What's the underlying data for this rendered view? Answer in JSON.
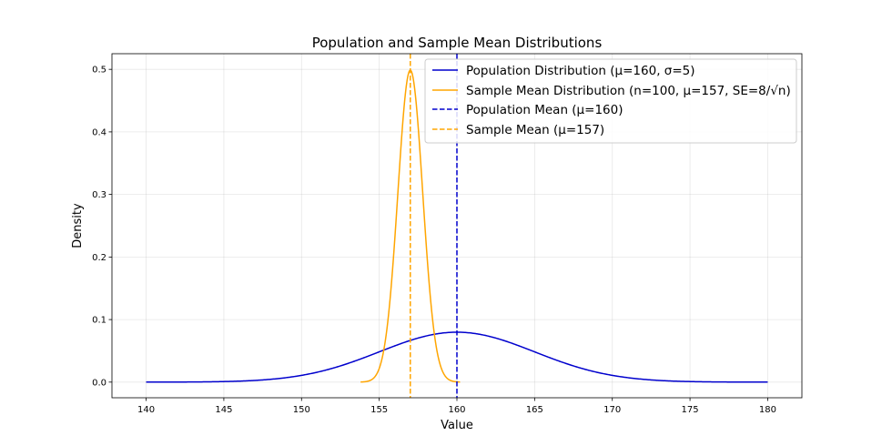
{
  "chart_data": {
    "type": "line",
    "title": "Population and Sample Mean Distributions",
    "xlabel": "Value",
    "ylabel": "Density",
    "xlim": [
      137.8,
      182.2
    ],
    "ylim": [
      -0.025,
      0.525
    ],
    "xticks": [
      140,
      145,
      150,
      155,
      160,
      165,
      170,
      175,
      180
    ],
    "yticks": [
      0.0,
      0.1,
      0.2,
      0.3,
      0.4,
      0.5
    ],
    "ytick_labels": [
      "0.0",
      "0.1",
      "0.2",
      "0.3",
      "0.4",
      "0.5"
    ],
    "grid": true,
    "legend_position": "top-right",
    "series": [
      {
        "name": "Population Distribution (μ=160, σ=5)",
        "kind": "normal_curve",
        "mean": 160,
        "sd": 5,
        "x_range": [
          140,
          180
        ],
        "color": "#0000cd",
        "style": "solid"
      },
      {
        "name": "Sample Mean Distribution (n=100, μ=157, SE=8/√n)",
        "kind": "normal_curve",
        "mean": 157,
        "sd": 0.8,
        "x_range": [
          153.8,
          160.2
        ],
        "color": "#ffa500",
        "style": "solid"
      },
      {
        "name": "Population Mean (μ=160)",
        "kind": "vline",
        "x": 160,
        "color": "#0000cd",
        "style": "dashed"
      },
      {
        "name": "Sample Mean (μ=157)",
        "kind": "vline",
        "x": 157,
        "color": "#ffa500",
        "style": "dashed"
      }
    ]
  }
}
